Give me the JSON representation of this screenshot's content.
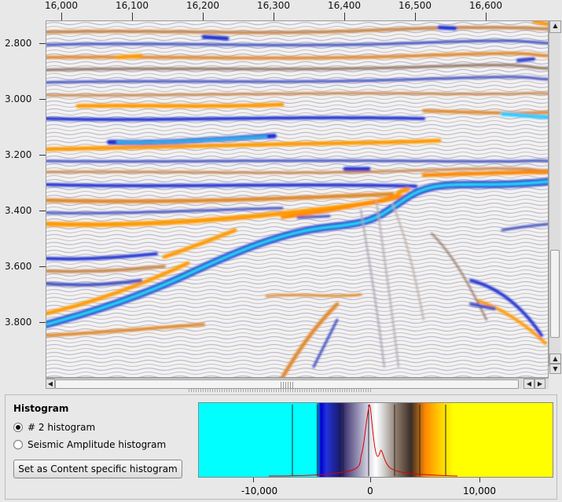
{
  "top_axis": {
    "ticks": [
      "16,000",
      "16,100",
      "16,200",
      "16,300",
      "16,400",
      "16,500",
      "16,600"
    ]
  },
  "left_axis": {
    "ticks": [
      "2.800",
      "3.000",
      "3.200",
      "3.400",
      "3.600",
      "3.800"
    ]
  },
  "scrollbars": {
    "up": "▲",
    "down": "▼",
    "left": "◀",
    "right": "▶"
  },
  "panel": {
    "title": "Histogram",
    "options": [
      {
        "label": "# 2 histogram",
        "selected": true
      },
      {
        "label": "Seismic Amplitude histogram",
        "selected": false
      }
    ],
    "button_label": "Set as Content specific histogram"
  },
  "histogram": {
    "x_ticks": [
      "-10,000",
      "0",
      "10,000"
    ],
    "colormap": [
      "#00ffff",
      "#0000cc",
      "#1a1a66",
      "#ffffff",
      "#3a2e28",
      "#ff8800",
      "#ffff00"
    ],
    "curve_color": "#dd0000"
  }
}
